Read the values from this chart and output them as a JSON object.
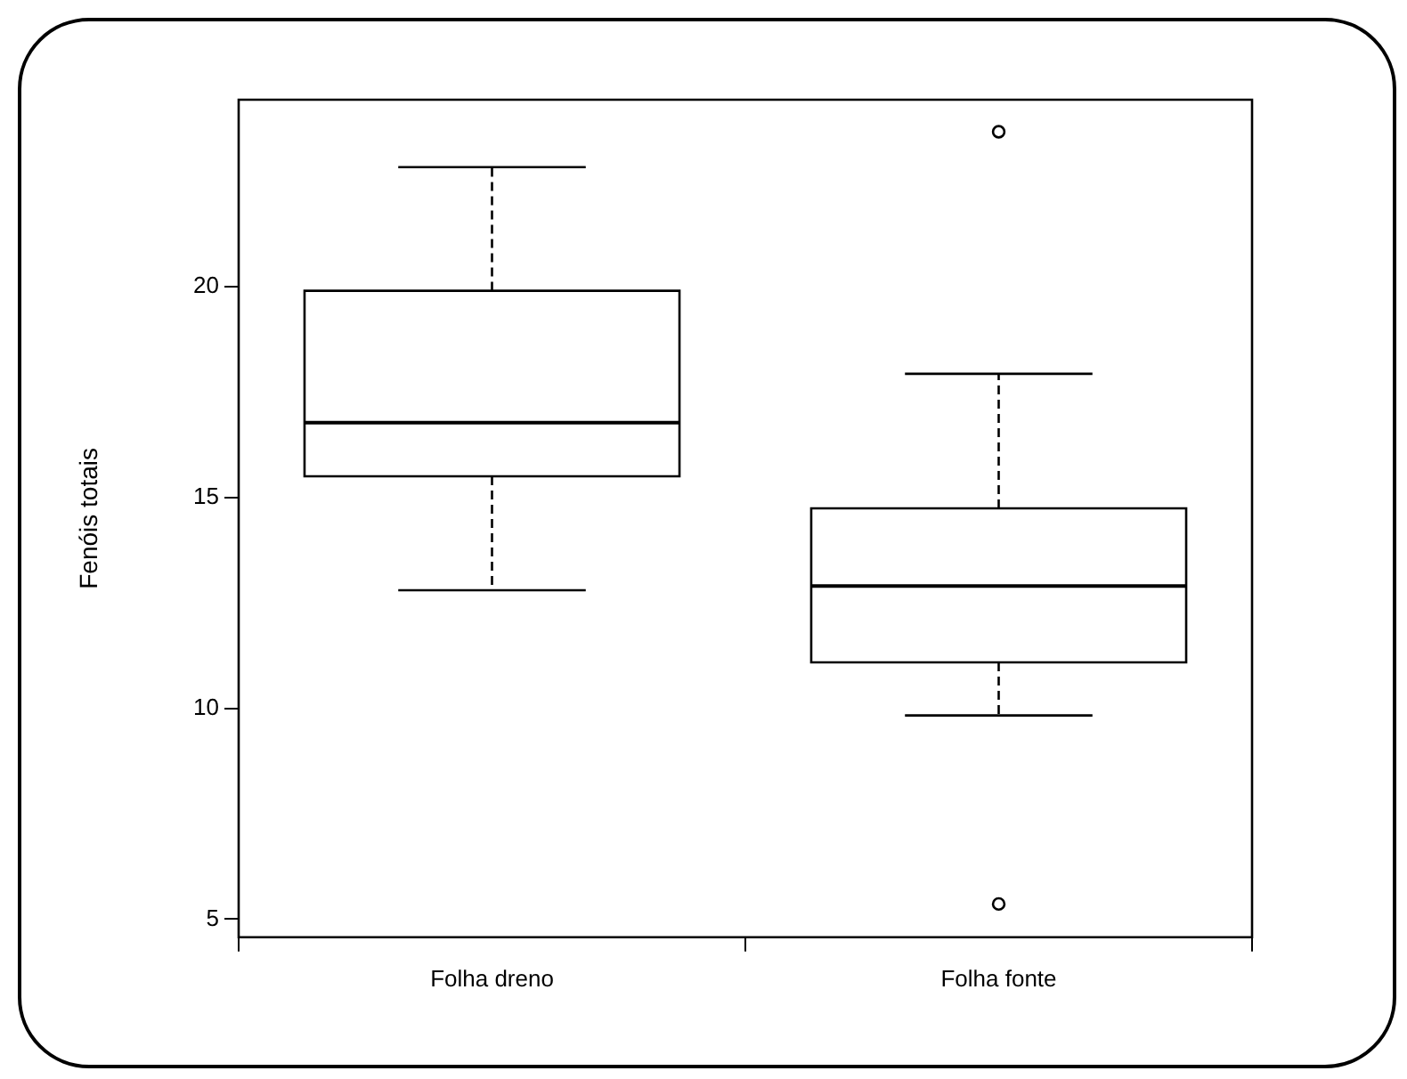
{
  "chart_data": {
    "type": "box",
    "ylabel": "Fenóis totais",
    "categories": [
      "Folha dreno",
      "Folha fonte"
    ],
    "boxes": [
      {
        "low": 12.8,
        "q1": 15.5,
        "median": 16.77,
        "q3": 19.9,
        "high": 22.83
      },
      {
        "low": 9.83,
        "q1": 11.09,
        "median": 12.9,
        "q3": 14.74,
        "high": 17.93,
        "outliers": [
          23.67,
          5.36
        ]
      }
    ],
    "color": "#000000",
    "ylim": [
      4.57,
      24.43
    ],
    "yticks": [
      5,
      10,
      15,
      20
    ],
    "grid": false,
    "legend": false,
    "marker": "circle"
  }
}
